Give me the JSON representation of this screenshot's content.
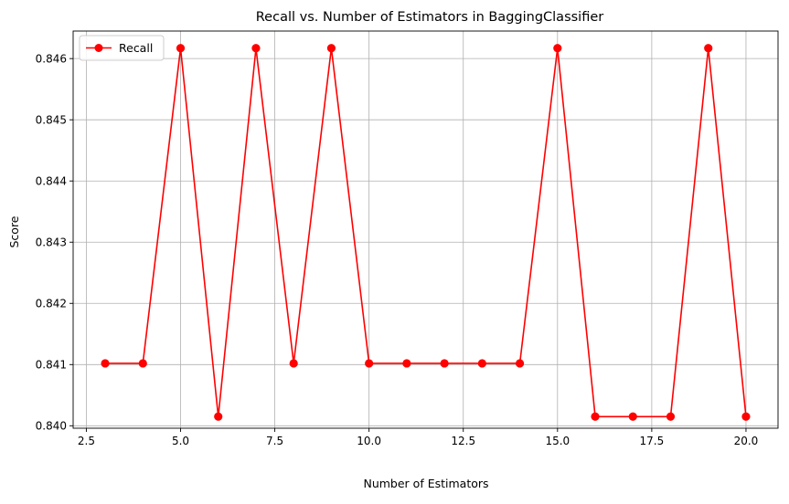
{
  "chart_data": {
    "type": "line",
    "title": "Recall vs. Number of Estimators in BaggingClassifier",
    "xlabel": "Number of Estimators",
    "ylabel": "Score",
    "xlim": [
      2.15,
      20.85
    ],
    "ylim": [
      0.83996,
      0.84645
    ],
    "grid": true,
    "legend_position": "top-left",
    "x_ticks": [
      2.5,
      5.0,
      7.5,
      10.0,
      12.5,
      15.0,
      17.5,
      20.0
    ],
    "x_tick_labels": [
      "2.5",
      "5.0",
      "7.5",
      "10.0",
      "12.5",
      "15.0",
      "17.5",
      "20.0"
    ],
    "y_ticks": [
      0.84,
      0.841,
      0.842,
      0.843,
      0.844,
      0.845,
      0.846
    ],
    "y_tick_labels": [
      "0.840",
      "0.841",
      "0.842",
      "0.843",
      "0.844",
      "0.845",
      "0.846"
    ],
    "series": [
      {
        "name": "Recall",
        "color": "#ff0000",
        "marker": "circle",
        "x": [
          3,
          4,
          5,
          6,
          7,
          8,
          9,
          10,
          11,
          12,
          13,
          14,
          15,
          16,
          17,
          18,
          19,
          20
        ],
        "y": [
          0.84102,
          0.84102,
          0.84617,
          0.84015,
          0.84617,
          0.84102,
          0.84617,
          0.84102,
          0.84102,
          0.84102,
          0.84102,
          0.84102,
          0.84617,
          0.84015,
          0.84015,
          0.84015,
          0.84617,
          0.84015
        ]
      }
    ]
  }
}
